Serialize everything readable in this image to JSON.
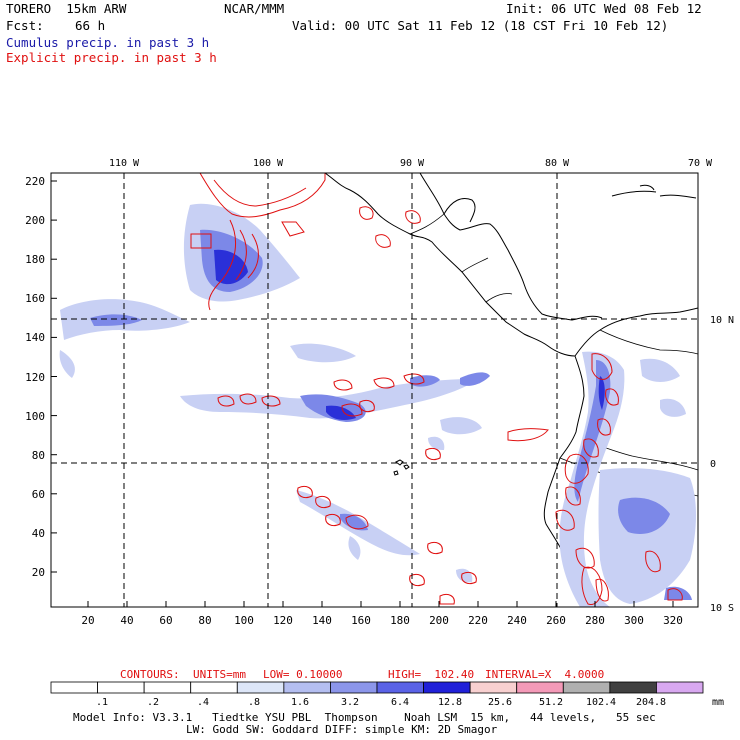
{
  "header": {
    "model_name": "TORERO  15km ARW",
    "institution": "NCAR/MMM",
    "init_time": "Init: 06 UTC Wed 08 Feb 12",
    "forecast_label": "Fcst:",
    "forecast_hours": "66 h",
    "valid_time": "Valid: 00 UTC Sat 11 Feb 12 (18 CST Fri 10 Feb 12)",
    "field_cumulus": "Cumulus precip. in past 3 h",
    "field_explicit": "Explicit precip. in past 3 h"
  },
  "colors": {
    "cumulus_text": "#1a1aa8",
    "explicit_text": "#e01010",
    "contour": "#e01010",
    "coast": "#000000",
    "precip_light": "#c8d0f4",
    "precip_medium": "#7c88e8",
    "precip_heavy": "#2a30d8"
  },
  "map": {
    "longitude_labels": [
      "110 W",
      "100 W",
      "90 W",
      "80 W",
      "70 W"
    ],
    "latitude_labels": [
      "10 N",
      "0",
      "10 S"
    ],
    "y_grid_labels": [
      "220",
      "200",
      "180",
      "160",
      "140",
      "120",
      "100",
      "80",
      "60",
      "40",
      "20"
    ],
    "x_grid_labels": [
      "20",
      "40",
      "60",
      "80",
      "100",
      "120",
      "140",
      "160",
      "180",
      "200",
      "220",
      "240",
      "260",
      "280",
      "300",
      "320"
    ]
  },
  "contours_info": {
    "label": "CONTOURS:",
    "units": "UNITS=mm",
    "low": "LOW= 0.10000",
    "high": "HIGH=  102.40",
    "interval": "INTERVAL=X  4.0000"
  },
  "colorbar": {
    "unit": "mm",
    "labels": [
      ".1",
      ".2",
      ".4",
      ".8",
      "1.6",
      "3.2",
      "6.4",
      "12.8",
      "25.6",
      "51.2",
      "102.4",
      "204.8"
    ],
    "colors": [
      "#ffffff",
      "#ffffff",
      "#ffffff",
      "#ffffff",
      "#dde6f8",
      "#b4bef0",
      "#8c96ea",
      "#5a62e6",
      "#2020d8",
      "#f8d0d0",
      "#f49ab8",
      "#b0b0b0",
      "#404040",
      "#d8a8f0"
    ]
  },
  "footer": {
    "line1": "Model Info: V3.3.1   Tiedtke YSU PBL  Thompson    Noah LSM  15 km,   44 levels,   55 sec",
    "line2": "LW: Godd SW: Goddard DIFF: simple KM: 2D Smagor"
  }
}
